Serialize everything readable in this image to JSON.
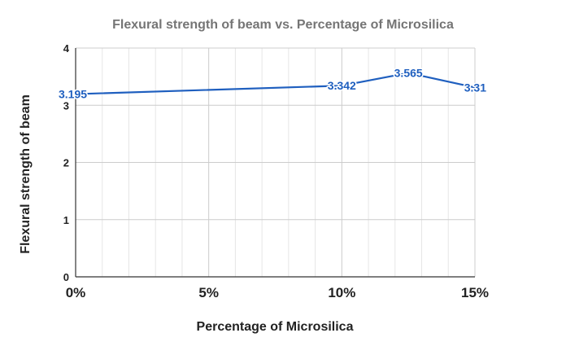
{
  "chart_data": {
    "type": "line",
    "title": "Flexural strength of beam vs. Percentage of Microsilica",
    "xlabel": "Percentage of Microsilica",
    "ylabel": "Flexural strength of beam",
    "x": [
      0,
      10,
      12.5,
      15
    ],
    "series": [
      {
        "values": [
          3.195,
          3.342,
          3.565,
          3.31
        ],
        "labels": [
          "3.195",
          "3.342",
          "3.565",
          "3.31"
        ]
      }
    ],
    "xlim": [
      0,
      15
    ],
    "ylim": [
      0,
      4
    ],
    "x_ticks": [
      0,
      5,
      10,
      15
    ],
    "x_tick_labels": [
      "0%",
      "5%",
      "10%",
      "15%"
    ],
    "x_minor_step": 1,
    "y_ticks": [
      0,
      1,
      2,
      3,
      4
    ],
    "y_tick_labels": [
      "0",
      "1",
      "2",
      "3",
      "4"
    ],
    "grid": true,
    "legend": "none",
    "colors": {
      "line": "#1f5fbf",
      "label": "#1f5fbf"
    }
  }
}
